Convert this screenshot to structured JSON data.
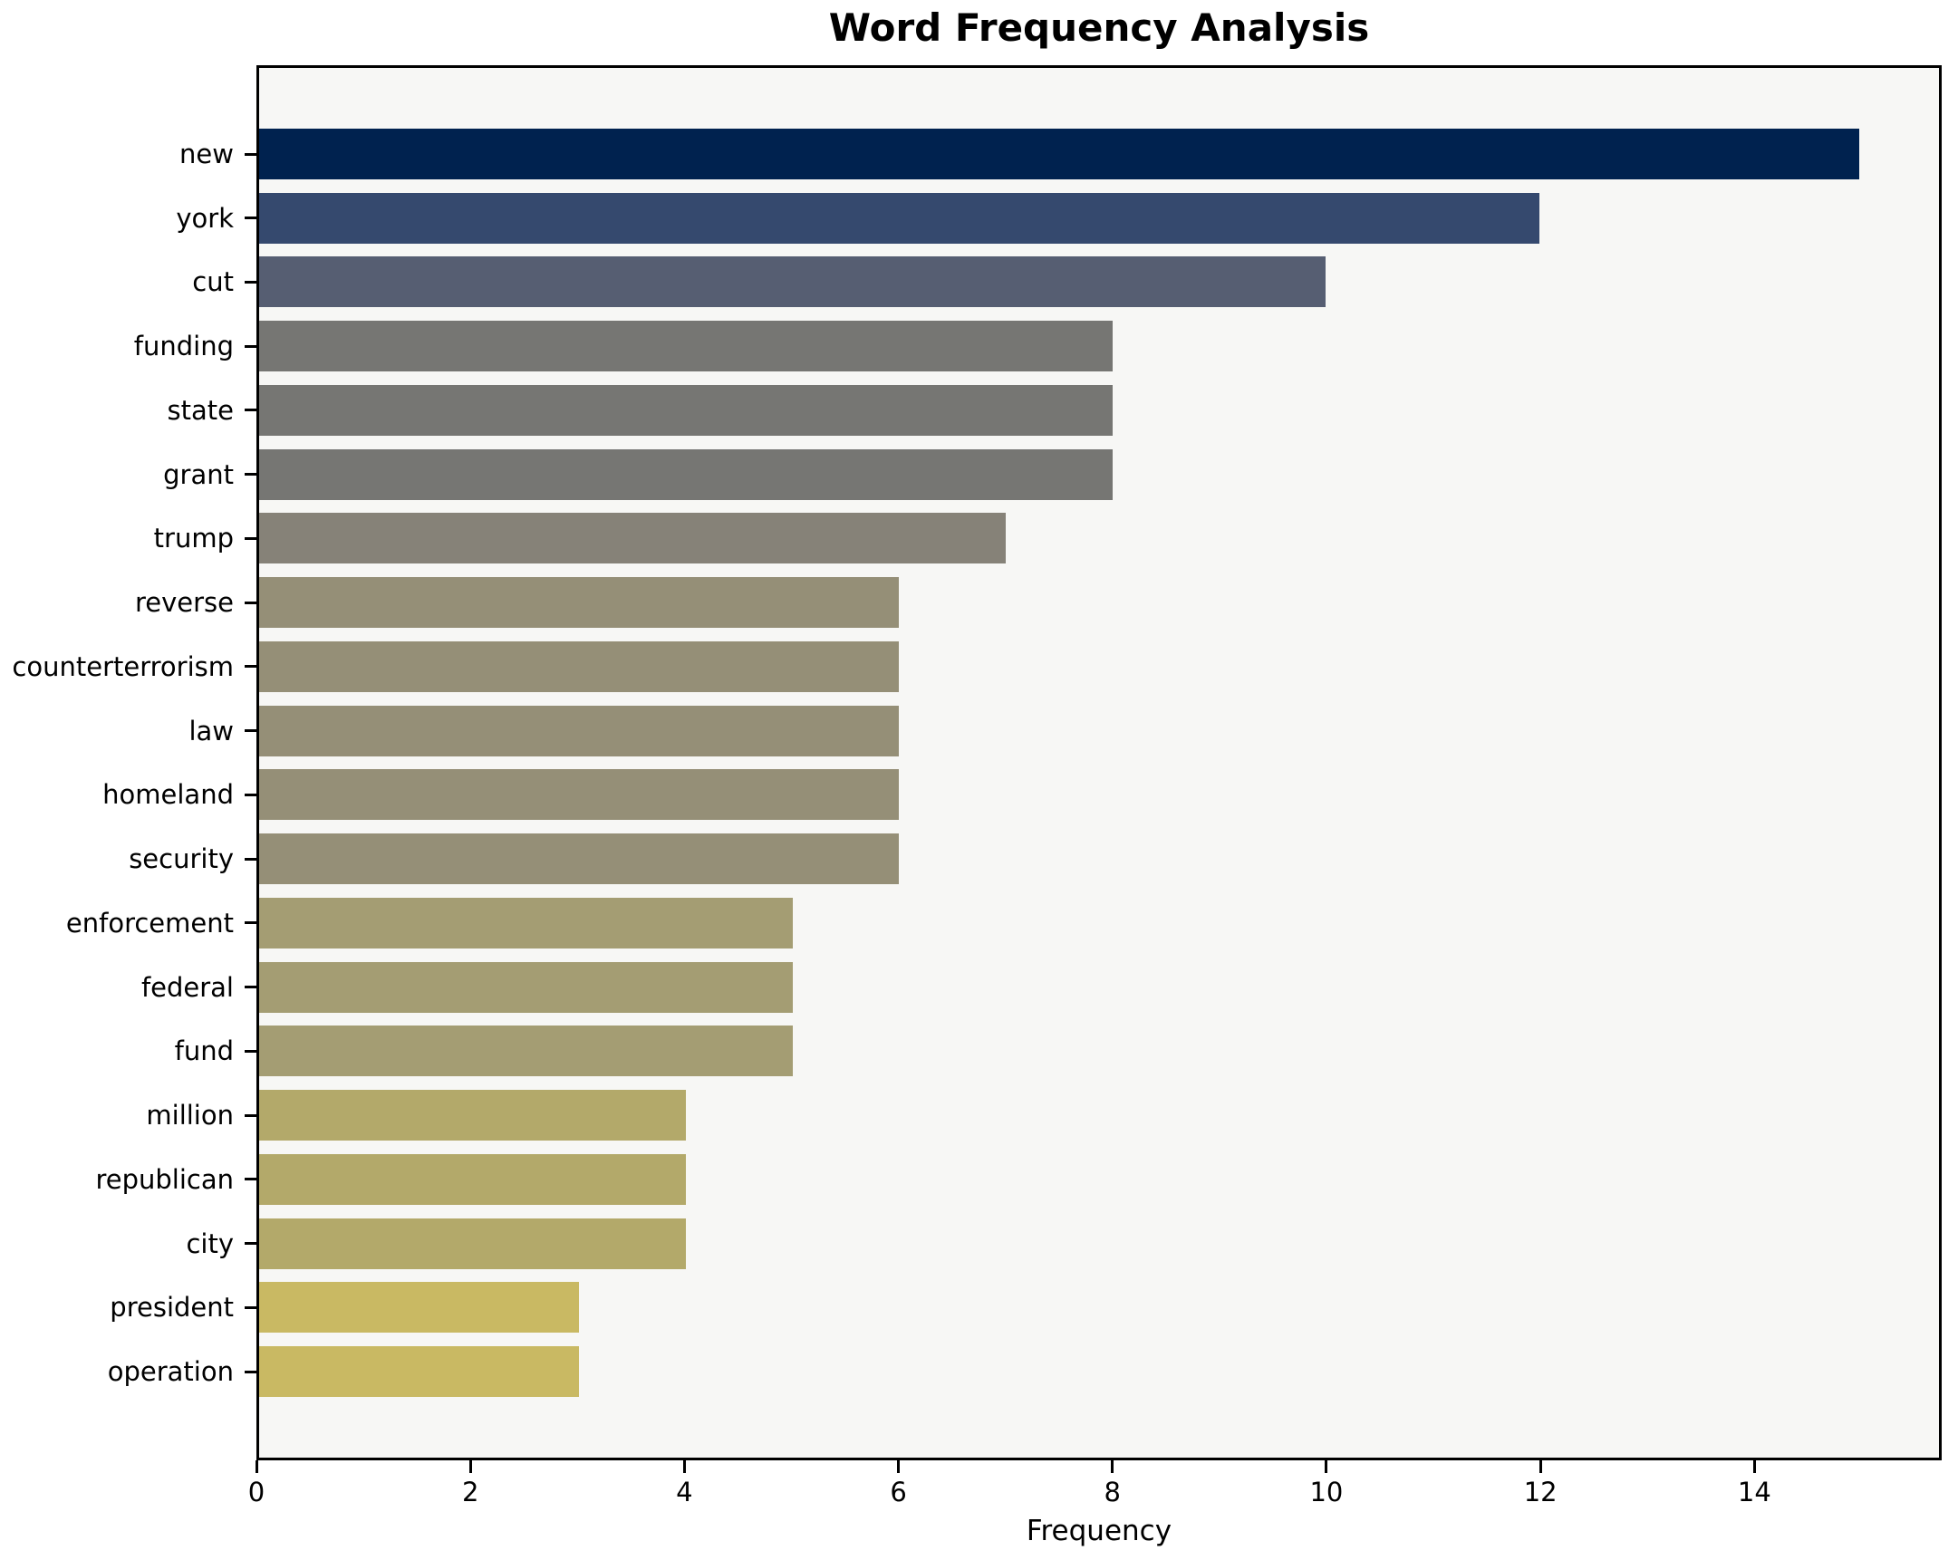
{
  "chart_data": {
    "type": "bar",
    "orientation": "horizontal",
    "title": "Word Frequency Analysis",
    "xlabel": "Frequency",
    "ylabel": "",
    "grid": false,
    "legend": null,
    "xlim": [
      0,
      15.75
    ],
    "xticks": [
      0,
      2,
      4,
      6,
      8,
      10,
      12,
      14
    ],
    "categories": [
      "new",
      "york",
      "cut",
      "funding",
      "state",
      "grant",
      "trump",
      "reverse",
      "counterterrorism",
      "law",
      "homeland",
      "security",
      "enforcement",
      "federal",
      "fund",
      "million",
      "republican",
      "city",
      "president",
      "operation"
    ],
    "values": [
      15,
      12,
      10,
      8,
      8,
      8,
      7,
      6,
      6,
      6,
      6,
      6,
      5,
      5,
      5,
      4,
      4,
      4,
      3,
      3
    ],
    "bar_colors": [
      "#00224f",
      "#35496e",
      "#565e72",
      "#767673",
      "#767673",
      "#767673",
      "#868278",
      "#958f77",
      "#958f77",
      "#958f77",
      "#958f77",
      "#958f77",
      "#a49d73",
      "#a49d73",
      "#a49d73",
      "#b3a96a",
      "#b3a96a",
      "#b3a96a",
      "#c9b963",
      "#c9b963"
    ],
    "colors": {
      "plot_background": "#f7f7f5",
      "figure_background": "#ffffff",
      "spine": "#000000",
      "text": "#000000"
    }
  }
}
